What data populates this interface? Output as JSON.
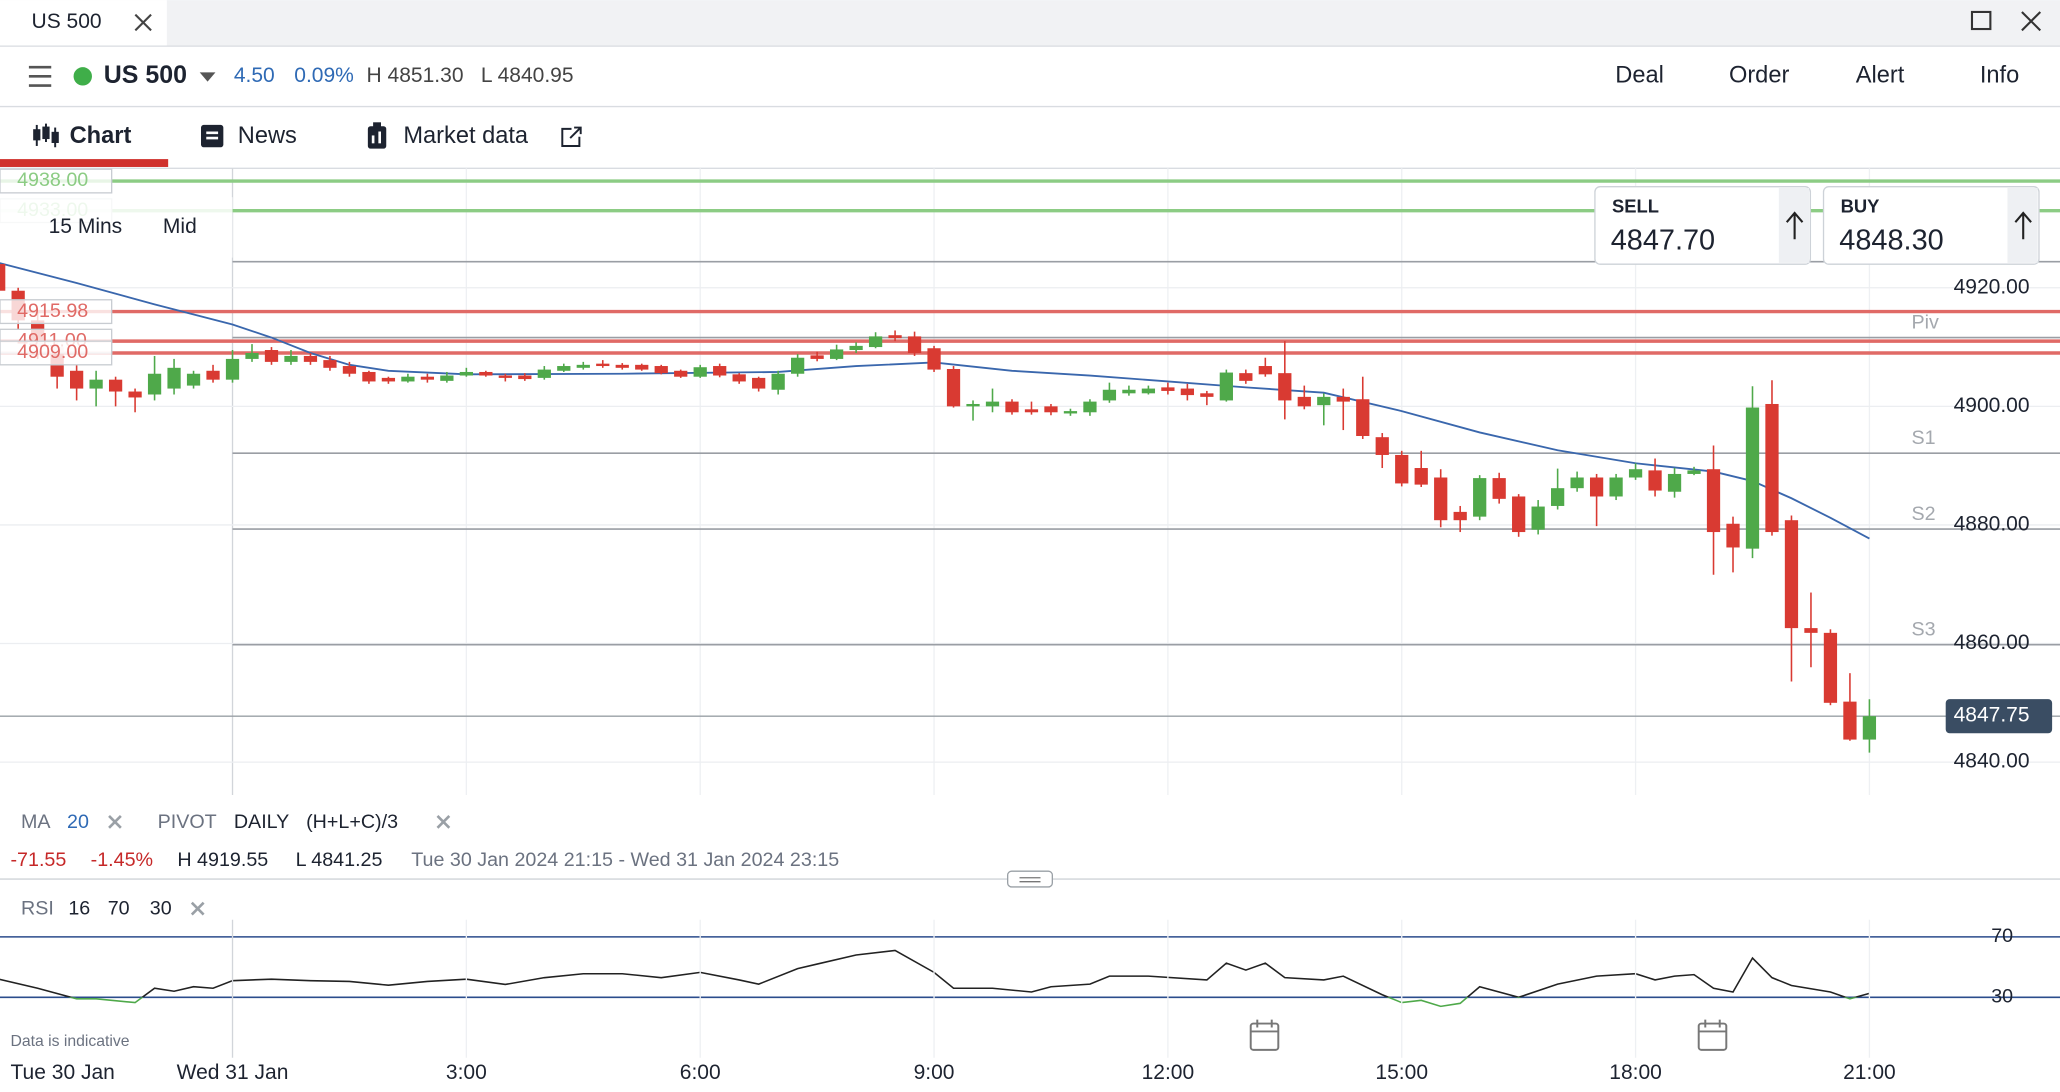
{
  "tab": {
    "title": "US 500"
  },
  "header": {
    "instrument": "US 500",
    "change": "4.50",
    "change_pct": "0.09%",
    "high": "H 4851.30",
    "low": "L 4840.95",
    "actions": [
      "Deal",
      "Order",
      "Alert",
      "Info"
    ]
  },
  "nav": {
    "tabs": [
      "Chart",
      "News",
      "Market data"
    ]
  },
  "quote": {
    "sell_label": "SELL",
    "sell": "4847.70",
    "buy_label": "BUY",
    "buy": "4848.30"
  },
  "chart_controls": {
    "interval": "15 Mins",
    "price_mode": "Mid"
  },
  "legend": {
    "ma_label": "MA",
    "ma_period": "20",
    "pivot_label": "PIVOT",
    "pivot_period": "DAILY",
    "pivot_formula": "(H+L+C)/3",
    "change": "-71.55",
    "change_pct": "-1.45%",
    "high": "H 4919.55",
    "low": "L 4841.25",
    "range": "Tue 30 Jan 2024 21:15 - Wed 31 Jan 2024 23:15",
    "rsi_label": "RSI",
    "rsi_period": "16",
    "rsi_upper": "70",
    "rsi_lower": "30"
  },
  "footnote": "Data is indicative",
  "chart_data": {
    "type": "candlestick",
    "x": [
      -3,
      -2.75,
      -2.5,
      -2.25,
      -2,
      -1.75,
      -1.5,
      -1.25,
      -1,
      -0.75,
      -0.5,
      -0.25,
      0,
      0.25,
      0.5,
      0.75,
      1,
      1.25,
      1.5,
      1.75,
      2,
      2.25,
      2.5,
      2.75,
      3,
      3.25,
      3.5,
      3.75,
      4,
      4.25,
      4.5,
      4.75,
      5,
      5.25,
      5.5,
      5.75,
      6,
      6.25,
      6.5,
      6.75,
      7,
      7.25,
      7.5,
      7.75,
      8,
      8.25,
      8.5,
      8.75,
      9,
      9.25,
      9.5,
      9.75,
      10,
      10.25,
      10.5,
      10.75,
      11,
      11.25,
      11.5,
      11.75,
      12,
      12.25,
      12.5,
      12.75,
      13,
      13.25,
      13.5,
      13.75,
      14,
      14.25,
      14.5,
      14.75,
      15,
      15.25,
      15.5,
      15.75,
      16,
      16.25,
      16.5,
      16.75,
      17,
      17.25,
      17.5,
      17.75,
      18,
      18.25,
      18.5,
      18.75,
      19,
      19.25,
      19.5,
      19.75,
      20,
      20.25,
      20.5,
      20.75,
      21
    ],
    "open": [
      4924,
      4919.5,
      4914.5,
      4910,
      4906,
      4903,
      4904.5,
      4902.5,
      4902,
      4903,
      4903.5,
      4906,
      4904.5,
      4908,
      4909.5,
      4907.5,
      4908.5,
      4907.8,
      4906.8,
      4905.8,
      4904.8,
      4904.2,
      4905,
      4904.3,
      4905.2,
      4905.8,
      4905.2,
      4905.2,
      4904.8,
      4906,
      4906.5,
      4907.2,
      4907,
      4907,
      4906.8,
      4906,
      4905,
      4906.8,
      4905.4,
      4904.8,
      4902.8,
      4905.5,
      4908.6,
      4908,
      4909.5,
      4910,
      4912,
      4911.8,
      4909.8,
      4906.3,
      4900,
      4900,
      4900.8,
      4899.5,
      4900,
      4898.8,
      4899,
      4901,
      4902.2,
      4902.2,
      4903.2,
      4903,
      4902.2,
      4901,
      4905.6,
      4906.8,
      4905.6,
      4901.6,
      4900.2,
      4901.6,
      4901.2,
      4894.8,
      4891.8,
      4889.6,
      4888,
      4882.2,
      4881.4,
      4887.9,
      4884.8,
      4879.2,
      4883.2,
      4886.2,
      4888,
      4884.8,
      4888,
      4889.2,
      4885.6,
      4888.6,
      4889.4,
      4880.2,
      4876,
      4900.4,
      4880.8,
      4862.6,
      4861.8,
      4850.2,
      4843.8
    ],
    "high": [
      4926,
      4920,
      4916,
      4911,
      4907,
      4906,
      4905,
      4903,
      4908.5,
      4908,
      4906,
      4907,
      4909.5,
      4910.5,
      4910,
      4909.5,
      4909,
      4908.5,
      4907.5,
      4906,
      4905,
      4905.5,
      4905.5,
      4905.8,
      4906.5,
      4906,
      4905.5,
      4905.6,
      4906.8,
      4907.2,
      4907.5,
      4907.8,
      4907.3,
      4907.2,
      4907,
      4906.2,
      4907,
      4907.2,
      4905.6,
      4905,
      4906,
      4908.8,
      4909.2,
      4910.4,
      4910.8,
      4912.5,
      4912.8,
      4912.6,
      4910.2,
      4906.8,
      4901,
      4903,
      4901.2,
      4900.8,
      4900.4,
      4899.6,
      4901.2,
      4904,
      4903.5,
      4903.5,
      4904,
      4903.8,
      4902.6,
      4906.2,
      4906.2,
      4908.2,
      4911,
      4903.5,
      4902.2,
      4903,
      4905,
      4895.5,
      4892.5,
      4892.5,
      4889.4,
      4883.2,
      4888.4,
      4888.8,
      4885.2,
      4884.2,
      4889.5,
      4889,
      4888.6,
      4888.6,
      4890.4,
      4891.2,
      4889.6,
      4889.8,
      4893.4,
      4881.4,
      4903.4,
      4904.4,
      4881.6,
      4868.6,
      4862.4,
      4855,
      4850.6
    ],
    "low": [
      4918,
      4913,
      4908,
      4903,
      4901,
      4900,
      4900,
      4899,
      4901,
      4902,
      4903,
      4904,
      4904,
      4907.5,
      4907,
      4907,
      4907,
      4906,
      4905,
      4903.8,
      4903.8,
      4904,
      4904,
      4904,
      4905,
      4905,
      4904.2,
      4904.3,
      4904.5,
      4905.8,
      4906.2,
      4906.5,
      4906.2,
      4906,
      4905.4,
      4904.8,
      4904.8,
      4904.9,
      4903.8,
      4902.5,
      4902,
      4905,
      4907.6,
      4907.8,
      4909,
      4909.8,
      4911,
      4908.5,
      4905.8,
      4899.8,
      4897.6,
      4899,
      4898.6,
      4898.6,
      4898.5,
      4898.4,
      4898.4,
      4900.6,
      4901.8,
      4902,
      4902,
      4901,
      4900.2,
      4900.8,
      4903.8,
      4905,
      4897.8,
      4899.5,
      4896.8,
      4896,
      4894.5,
      4889.6,
      4886.5,
      4886.4,
      4879.6,
      4878.8,
      4880.8,
      4883.6,
      4878,
      4878.4,
      4882.6,
      4885.6,
      4879.8,
      4884.2,
      4887.6,
      4884.8,
      4884.6,
      4888.4,
      4871.6,
      4872,
      4874.4,
      4878.2,
      4853.6,
      4856,
      4849.6,
      4843.6,
      4841.6
    ],
    "close": [
      4919.5,
      4914.5,
      4910,
      4905,
      4903,
      4904.5,
      4902.5,
      4901.5,
      4905.5,
      4906.5,
      4905.5,
      4904.5,
      4908,
      4909,
      4907.5,
      4908.5,
      4907.5,
      4906.5,
      4905.5,
      4904.2,
      4904.2,
      4905,
      4904.5,
      4905.2,
      4905.8,
      4905.2,
      4904.8,
      4904.6,
      4906.2,
      4906.8,
      4907,
      4906.8,
      4906.5,
      4906.2,
      4905.6,
      4905,
      4906.6,
      4905.2,
      4904.2,
      4903,
      4905.5,
      4908.2,
      4908,
      4909.6,
      4910.2,
      4911.8,
      4911.5,
      4909,
      4906.2,
      4900,
      4900.4,
      4900.8,
      4899,
      4899,
      4899,
      4899.2,
      4900.8,
      4902.8,
      4902.8,
      4903,
      4902.6,
      4901.9,
      4901.6,
      4905.7,
      4904.3,
      4905.4,
      4901,
      4900,
      4901.6,
      4900.8,
      4895,
      4891.8,
      4887,
      4886.8,
      4880.8,
      4880.8,
      4887.9,
      4884.4,
      4878.8,
      4883.1,
      4886.2,
      4888,
      4884.8,
      4888,
      4889.4,
      4885.8,
      4888.6,
      4889.2,
      4878.8,
      4876.2,
      4899.8,
      4878.8,
      4862.6,
      4861.8,
      4850,
      4843.8,
      4847.75
    ],
    "up_color": "#4fa94a",
    "down_color": "#d93a32",
    "xlim": [
      -2.983,
      23.445
    ],
    "ylim": [
      4834.46,
      4940.15
    ],
    "xticks": [
      {
        "value": -3,
        "label": "Tue 30 Jan"
      },
      {
        "value": 0,
        "label": "Wed 31 Jan"
      },
      {
        "value": 3,
        "label": "3:00"
      },
      {
        "value": 6,
        "label": "6:00"
      },
      {
        "value": 9,
        "label": "9:00"
      },
      {
        "value": 12,
        "label": "12:00"
      },
      {
        "value": 15,
        "label": "15:00"
      },
      {
        "value": 18,
        "label": "18:00"
      },
      {
        "value": 21,
        "label": "21:00"
      }
    ],
    "yticks": [
      {
        "value": 4840,
        "label": "4840.00"
      },
      {
        "value": 4860,
        "label": "4860.00"
      },
      {
        "value": 4880,
        "label": "4880.00"
      },
      {
        "value": 4900,
        "label": "4900.00"
      },
      {
        "value": 4920,
        "label": "4920.00"
      }
    ],
    "grid": true,
    "alerts": [
      {
        "value": 4938,
        "label": "4938.00",
        "color": "#8ccc84"
      },
      {
        "value": 4933,
        "label": "4933.00",
        "color": "#8ccc84"
      },
      {
        "value": 4915.98,
        "label": "4915.98",
        "color": "#e06a66"
      },
      {
        "value": 4911,
        "label": "4911.00",
        "color": "#e06a66"
      },
      {
        "value": 4909,
        "label": "4909.00",
        "color": "#e06a66"
      }
    ],
    "pivots": [
      {
        "value": 4924.4
      },
      {
        "value": 4911.6,
        "label": "Piv"
      },
      {
        "value": 4892.1,
        "label": "S1"
      },
      {
        "value": 4879.3,
        "label": "S2"
      },
      {
        "value": 4859.8,
        "label": "S3"
      }
    ],
    "last_price": {
      "value": 4847.75,
      "label": "4847.75"
    },
    "ma": {
      "color": "#3a67ad",
      "x": [
        -3,
        -2,
        -1,
        0,
        0.5,
        1,
        1.5,
        2,
        3,
        5,
        7,
        8,
        9,
        10,
        11,
        12,
        13,
        14,
        15,
        16,
        17,
        18,
        19,
        19.5,
        20,
        20.5,
        21
      ],
      "values": [
        4924.2,
        4920.8,
        4917.2,
        4913.8,
        4911.6,
        4909,
        4907,
        4906,
        4905.4,
        4905.5,
        4905.8,
        4906.8,
        4907.4,
        4906,
        4905.2,
        4904.2,
        4903.2,
        4902.3,
        4899.2,
        4895.6,
        4892.6,
        4890.4,
        4889,
        4887.4,
        4884.5,
        4881.2,
        4877.7
      ]
    },
    "rsi": {
      "color": "#222222",
      "oversold_color": "#4fa94a",
      "band_color": "#2b4c8c",
      "ylim": [
        16.1,
        98.7
      ],
      "yticks": [
        70,
        30
      ],
      "x": [
        -3,
        -2.5,
        -2,
        -1.75,
        -1.25,
        -1,
        -0.75,
        -0.5,
        -0.25,
        0,
        0.5,
        1,
        1.5,
        2,
        2.5,
        3,
        3.5,
        4,
        4.5,
        5,
        5.5,
        6,
        6.5,
        6.75,
        7.25,
        7.5,
        8,
        8.5,
        9,
        9.25,
        9.75,
        10.25,
        10.5,
        11,
        11.25,
        11.75,
        12.5,
        12.75,
        13,
        13.25,
        13.5,
        14,
        14.25,
        14.75,
        15,
        15.25,
        15.5,
        15.75,
        16,
        16.5,
        17,
        17.5,
        18,
        18.25,
        18.5,
        18.75,
        19,
        19.25,
        19.5,
        19.75,
        20,
        20.5,
        20.75,
        21
      ],
      "values": [
        42,
        36,
        29,
        29,
        26.5,
        36,
        34,
        37,
        36,
        41,
        42,
        41,
        40.5,
        38,
        40.5,
        42,
        38.5,
        43,
        45.6,
        45.6,
        43,
        46.5,
        41.5,
        38.7,
        49,
        52,
        58,
        61,
        46.5,
        36,
        36,
        33.5,
        37,
        38.7,
        44,
        44,
        41.5,
        52.6,
        48,
        52.6,
        43,
        41.5,
        44,
        31.7,
        26.5,
        28,
        24,
        26,
        37,
        30,
        38.7,
        44,
        45.6,
        41.5,
        44,
        45,
        36,
        33.5,
        56,
        43,
        37.8,
        33.5,
        29,
        32.6
      ]
    }
  }
}
